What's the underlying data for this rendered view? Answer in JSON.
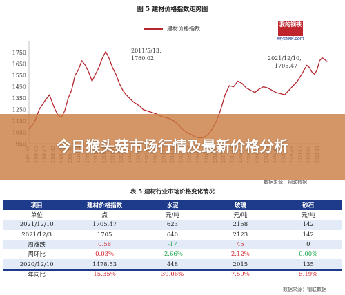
{
  "figure": {
    "title": "图 5  建材价格指数走势图",
    "legend": "建材价格指数",
    "logo_top": "我的钢铁",
    "logo_bottom": "Mysteel.com",
    "source": "数据来源：钢联数据",
    "annotations": {
      "peak_2011": [
        "2011/5/13,",
        "1760.02"
      ],
      "peak_2021": [
        "2021/12/10,",
        "1705.47"
      ]
    }
  },
  "chart_data": {
    "type": "line",
    "yticks": [
      "1750",
      "1650",
      "1550",
      "1450",
      "1350",
      "1250",
      "1150",
      "1050",
      "950"
    ],
    "xticks": [
      "2007-09",
      "2008-02",
      "2008-07",
      "2008-12",
      "2009-05",
      "2009-10",
      "2010-03",
      "2010-08",
      "2011-01",
      "2011-06",
      "2011-11",
      "2012-04",
      "2012-09",
      "2013-02",
      "2013-07",
      "2013-12",
      "2014-05",
      "2014-10",
      "2015-03",
      "2015-08",
      "2016-01",
      "2016-06",
      "2016-11",
      "2017-04",
      "2017-09",
      "2018-02",
      "2018-07",
      "2018-12",
      "2019-05",
      "2019-10",
      "2020-03",
      "2020-08",
      "2021-01",
      "2021-06",
      "2021-11"
    ],
    "ylim": [
      950,
      1800
    ],
    "series": [
      {
        "name": "建材价格指数",
        "color": "#b5262e",
        "x": [
          0,
          0.6,
          1.2,
          1.8,
          2.4,
          3,
          3.4,
          3.8,
          4.2,
          4.6,
          5,
          5.4,
          5.8,
          6.2,
          6.6,
          7,
          7.4,
          7.8,
          8.2,
          8.6,
          9,
          9.4,
          9.8,
          10.2,
          10.6,
          11,
          11.4,
          11.8,
          12.2,
          12.6,
          13,
          13.4,
          13.8,
          14.2,
          14.6,
          15,
          15.5,
          16,
          16.5,
          17,
          17.5,
          18,
          18.5,
          19,
          19.5,
          20,
          20.5,
          21,
          21.5,
          22,
          22.5,
          23,
          23.5,
          24,
          24.5,
          25,
          25.5,
          26,
          26.5,
          27,
          27.5,
          28,
          28.5,
          29,
          29.5,
          30,
          30.5,
          31,
          31.5,
          32,
          32.3,
          32.6,
          32.9,
          33.2,
          33.5,
          33.8,
          34.1,
          34.4,
          34.7,
          35
        ],
        "values": [
          1080,
          1130,
          1250,
          1320,
          1380,
          1260,
          1200,
          1180,
          1240,
          1350,
          1420,
          1550,
          1600,
          1680,
          1640,
          1580,
          1500,
          1560,
          1620,
          1700,
          1760,
          1700,
          1620,
          1560,
          1480,
          1420,
          1380,
          1350,
          1320,
          1300,
          1280,
          1250,
          1240,
          1230,
          1220,
          1210,
          1190,
          1180,
          1170,
          1150,
          1120,
          1080,
          1050,
          1030,
          1010,
          1000,
          1005,
          1030,
          1080,
          1150,
          1250,
          1380,
          1460,
          1450,
          1500,
          1480,
          1440,
          1420,
          1400,
          1430,
          1450,
          1440,
          1420,
          1400,
          1390,
          1380,
          1420,
          1460,
          1500,
          1560,
          1600,
          1640,
          1620,
          1580,
          1560,
          1600,
          1680,
          1705.47,
          1690,
          1670
        ]
      }
    ]
  },
  "banner": {
    "title": "今日猴头菇市场行情及最新价格分析"
  },
  "table": {
    "title": "表 5  建材行业市场价格变化情况",
    "headers": [
      "项目",
      "建材价格指数",
      "水泥",
      "玻璃",
      "砂石"
    ],
    "rows": [
      {
        "cells": [
          "单位",
          "点",
          "元/吨",
          "元/吨",
          "元/吨"
        ],
        "colors": [
          "",
          "",
          "",
          "",
          ""
        ]
      },
      {
        "cells": [
          "2021/12/10",
          "1705.47",
          "623",
          "2168",
          "142"
        ],
        "colors": [
          "",
          "",
          "",
          "",
          ""
        ]
      },
      {
        "cells": [
          "2021/12/3",
          "1705",
          "640",
          "2123",
          "142"
        ],
        "colors": [
          "",
          "",
          "",
          "",
          ""
        ]
      },
      {
        "cells": [
          "周涨跌",
          "0.58",
          "-17",
          "45",
          "0"
        ],
        "colors": [
          "",
          "red",
          "green",
          "red",
          ""
        ]
      },
      {
        "cells": [
          "周环比",
          "0.03%",
          "-2.66%",
          "2.12%",
          "0.00%"
        ],
        "colors": [
          "",
          "red",
          "green",
          "red",
          "green"
        ]
      },
      {
        "cells": [
          "2020/12/10",
          "1478.53",
          "448",
          "2015",
          "135"
        ],
        "colors": [
          "",
          "",
          "",
          "",
          ""
        ]
      },
      {
        "cells": [
          "年同比",
          "15.35%",
          "39.06%",
          "7.59%",
          "5.19%"
        ],
        "colors": [
          "",
          "red",
          "red",
          "red",
          "red"
        ]
      }
    ],
    "source": "数据来源：钢联数据"
  }
}
